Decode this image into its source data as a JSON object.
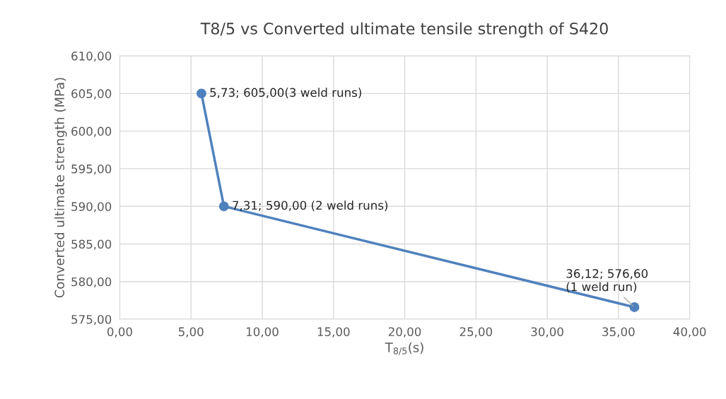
{
  "chart_data": {
    "type": "line",
    "title": "T8/5 vs Converted ultimate tensile strength of S420",
    "xlabel": "T$_{8/5}$(s)",
    "ylabel": "Converted ultimate strength (MPa)",
    "x": [
      5.73,
      7.31,
      36.12
    ],
    "series": [
      {
        "color": "#4f81bd",
        "values": [
          605.0,
          590.0,
          576.6
        ]
      }
    ],
    "xlim": [
      0,
      40
    ],
    "ylim": [
      575,
      610
    ],
    "xticks": [
      {
        "value": 0,
        "label": "0,00"
      },
      {
        "value": 5,
        "label": "5,00"
      },
      {
        "value": 10,
        "label": "10,00"
      },
      {
        "value": 15,
        "label": "15,00"
      },
      {
        "value": 20,
        "label": "20,00"
      },
      {
        "value": 25,
        "label": "25,00"
      },
      {
        "value": 30,
        "label": "30,00"
      },
      {
        "value": 35,
        "label": "35,00"
      },
      {
        "value": 40,
        "label": "40,00"
      }
    ],
    "yticks": [
      {
        "value": 575,
        "label": "575,00"
      },
      {
        "value": 580,
        "label": "580,00"
      },
      {
        "value": 585,
        "label": "585,00"
      },
      {
        "value": 590,
        "label": "590,00"
      },
      {
        "value": 595,
        "label": "595,00"
      },
      {
        "value": 600,
        "label": "600,00"
      },
      {
        "value": 605,
        "label": "605,00"
      },
      {
        "value": 610,
        "label": "610,00"
      }
    ],
    "annotations": [
      {
        "text": "5,73; 605,00(3 weld runs)",
        "x": 5.73,
        "y": 605.0
      },
      {
        "text": "7,31; 590,00 (2 weld runs)",
        "x": 7.31,
        "y": 590.0
      },
      {
        "text": "36,12; 576,60\n(1 weld run)",
        "x": 36.12,
        "y": 576.6
      }
    ],
    "grid": true,
    "marker": "circle",
    "line_style": "solid",
    "legend": false
  }
}
